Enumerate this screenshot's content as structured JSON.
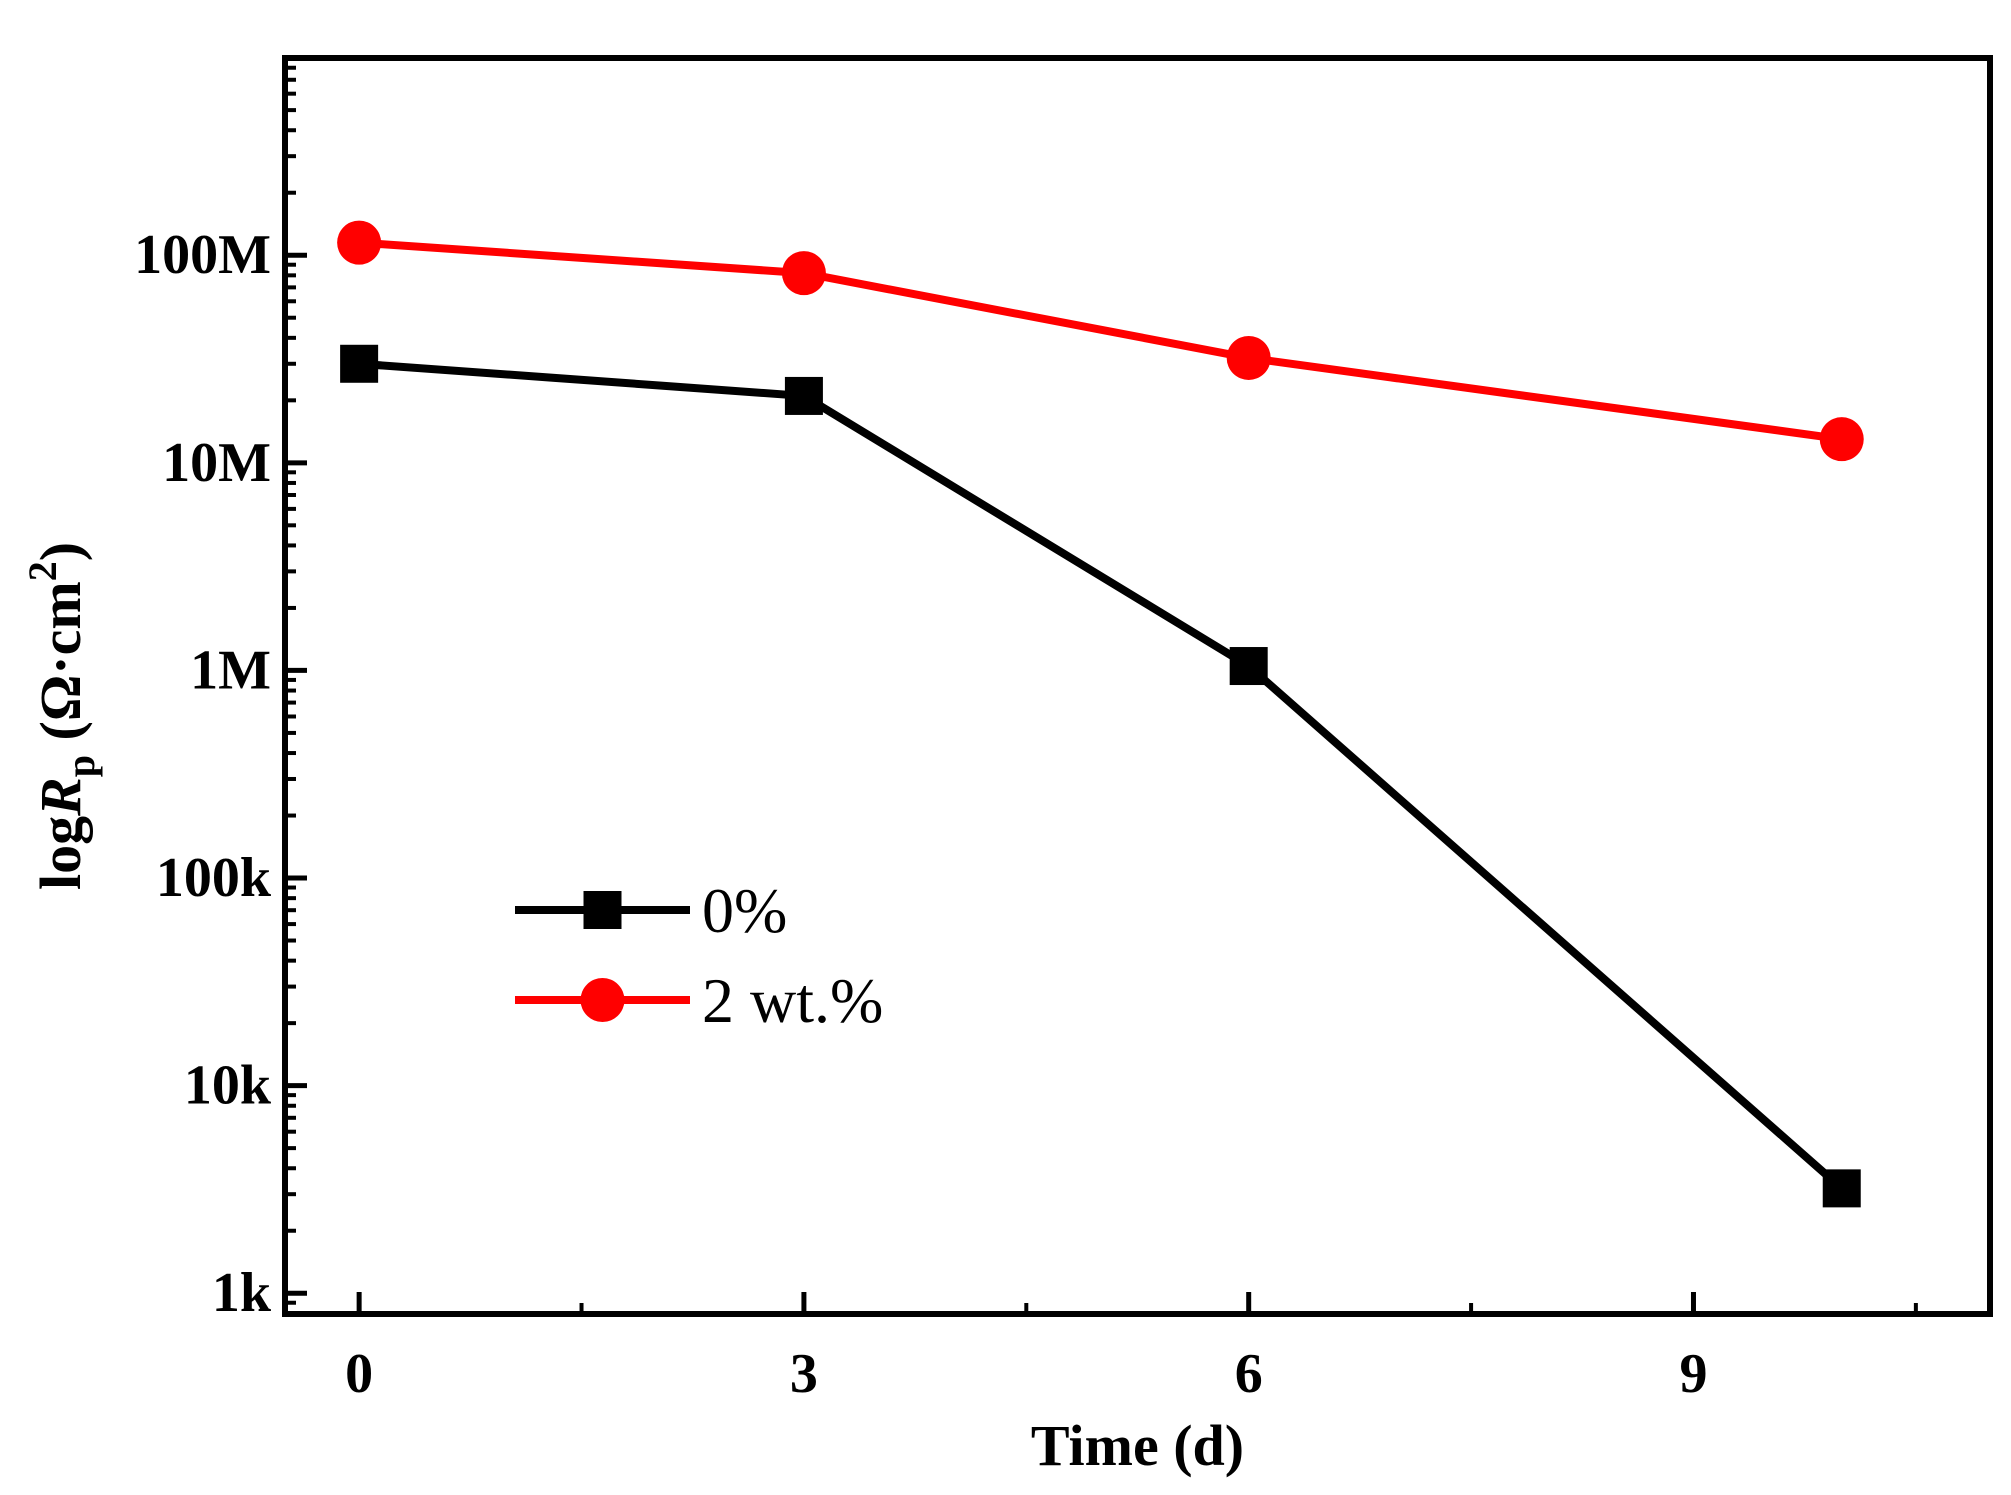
{
  "chart_data": {
    "type": "line",
    "title": "",
    "xlabel": "Time (d)",
    "ylabel": {
      "prefix": "log",
      "symbol": "R",
      "subscript": "p",
      "unit_open": " (Ω·cm",
      "superscript": "2",
      "unit_close": ")"
    },
    "x": [
      0,
      3,
      6,
      10
    ],
    "xlim": [
      -0.5,
      11.0
    ],
    "ylim_log10": [
      2.9,
      8.95
    ],
    "y_scale": "log",
    "x_ticks": [
      {
        "value": 0,
        "label": "0"
      },
      {
        "value": 3,
        "label": "3"
      },
      {
        "value": 6,
        "label": "6"
      },
      {
        "value": 9,
        "label": "9"
      }
    ],
    "x_minor_ticks": [
      1.5,
      4.5,
      7.5,
      10.5
    ],
    "y_ticks": [
      {
        "value": 1000,
        "label": "1k"
      },
      {
        "value": 10000,
        "label": "10k"
      },
      {
        "value": 100000,
        "label": "100k"
      },
      {
        "value": 1000000,
        "label": "1M"
      },
      {
        "value": 10000000,
        "label": "10M"
      },
      {
        "value": 100000000,
        "label": "100M"
      }
    ],
    "series": [
      {
        "name": "0%",
        "color": "#000000",
        "marker": "square",
        "values": [
          30000000,
          21000000,
          1050000,
          3200
        ]
      },
      {
        "name": "2 wt.%",
        "color": "#ff0000",
        "marker": "circle",
        "values": [
          115000000,
          82000000,
          32000000,
          13000000
        ]
      }
    ],
    "legend": {
      "position": "lower-left"
    },
    "grid": false
  }
}
